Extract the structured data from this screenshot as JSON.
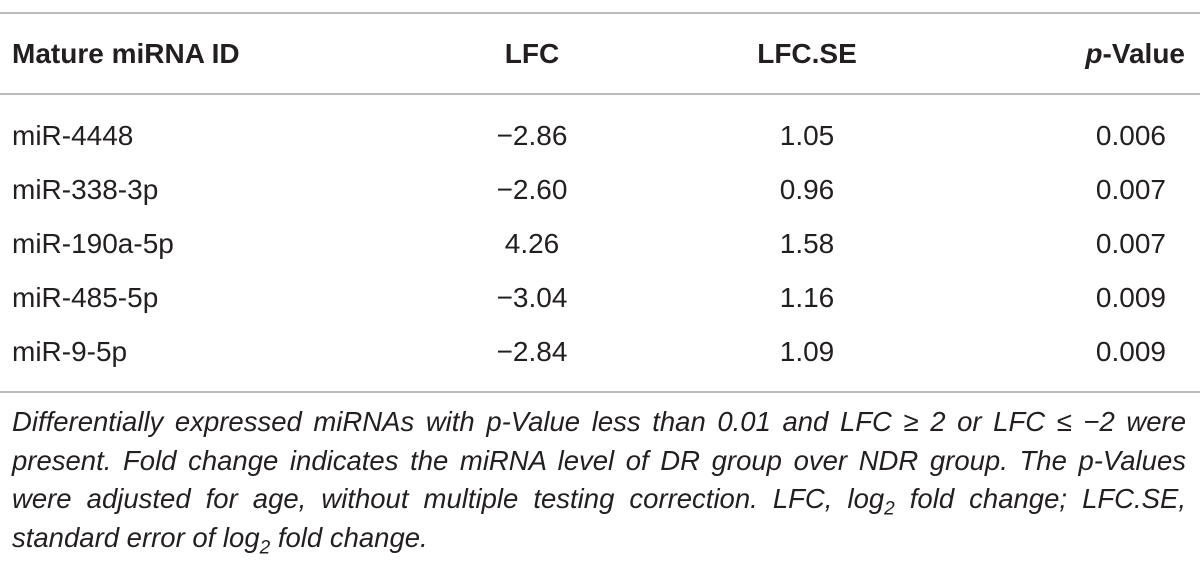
{
  "table": {
    "header": [
      "Mature miRNA ID",
      "LFC",
      "LFC.SE",
      [
        "p",
        "-Value"
      ]
    ],
    "rows": [
      [
        "miR-4448",
        "−2.86",
        "1.05",
        "0.006"
      ],
      [
        "miR-338-3p",
        "−2.60",
        "0.96",
        "0.007"
      ],
      [
        "miR-190a-5p",
        "4.26",
        "1.58",
        "0.007"
      ],
      [
        "miR-485-5p",
        "−3.04",
        "1.16",
        "0.009"
      ],
      [
        "miR-9-5p",
        "−2.84",
        "1.09",
        "0.009"
      ]
    ]
  },
  "footnote": [
    "Differentially expressed miRNAs with p-Value less than 0.01 and LFC ≥ 2 or LFC ≤ −2 were present. Fold change indicates the miRNA level of DR group over NDR group. The p-Values were adjusted for age, without multiple testing correction. LFC, log",
    "2",
    " fold change; LFC.SE, standard error of log",
    "2",
    " fold change."
  ]
}
